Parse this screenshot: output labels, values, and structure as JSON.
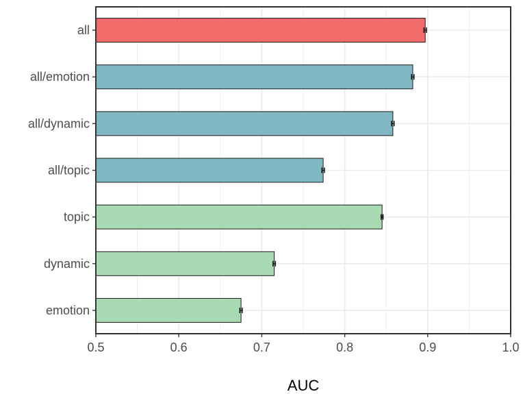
{
  "chart_data": {
    "type": "bar",
    "orientation": "horizontal",
    "title": "",
    "xlabel": "AUC",
    "ylabel": "",
    "xlim": [
      0.5,
      1.0
    ],
    "xticks": [
      "0.5",
      "0.6",
      "0.7",
      "0.8",
      "0.9",
      "1.0"
    ],
    "grid": true,
    "categories": [
      "all",
      "all/emotion",
      "all/dynamic",
      "all/topic",
      "topic",
      "dynamic",
      "emotion"
    ],
    "values": [
      0.897,
      0.882,
      0.858,
      0.774,
      0.845,
      0.715,
      0.675
    ],
    "error": [
      0.0015,
      0.0015,
      0.0015,
      0.0015,
      0.0012,
      0.0015,
      0.0015
    ],
    "bar_colors": [
      "#f26b6b",
      "#7fb8c2",
      "#7fb8c2",
      "#7fb8c2",
      "#a8dbb4",
      "#a8dbb4",
      "#a8dbb4"
    ]
  }
}
